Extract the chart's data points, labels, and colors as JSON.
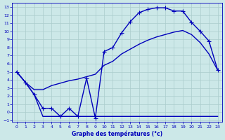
{
  "xlabel": "Graphe des températures (°c)",
  "bg_color": "#cce8e8",
  "grid_color": "#aacccc",
  "line_color": "#0000bb",
  "marker": "+",
  "markersize": 4,
  "linewidth": 1.0,
  "xlim": [
    -0.5,
    23.5
  ],
  "ylim": [
    -1.2,
    13.5
  ],
  "xticks": [
    0,
    1,
    2,
    3,
    4,
    5,
    6,
    7,
    8,
    9,
    10,
    11,
    12,
    13,
    14,
    15,
    16,
    17,
    18,
    19,
    20,
    21,
    22,
    23
  ],
  "yticks": [
    -1,
    0,
    1,
    2,
    3,
    4,
    5,
    6,
    7,
    8,
    9,
    10,
    11,
    12,
    13
  ],
  "curve1_x": [
    0,
    1,
    2,
    3,
    4,
    5,
    6,
    7,
    8,
    9,
    10,
    11,
    12,
    13,
    14,
    15,
    16,
    17,
    18,
    19,
    20,
    21,
    22,
    23
  ],
  "curve1_y": [
    5,
    3.7,
    2.2,
    0.5,
    0.5,
    -0.5,
    0.5,
    -0.5,
    4.2,
    -0.7,
    7.5,
    8.0,
    9.8,
    11.2,
    12.3,
    12.7,
    12.9,
    12.9,
    12.5,
    12.5,
    11.1,
    10.0,
    8.8,
    5.2
  ],
  "curve2_x": [
    0,
    1,
    2,
    3,
    4,
    5,
    6,
    7,
    8,
    9,
    10,
    11,
    12,
    13,
    14,
    15,
    16,
    17,
    18,
    19,
    20,
    21,
    22,
    23
  ],
  "curve2_y": [
    5,
    3.7,
    2.8,
    2.8,
    3.3,
    3.6,
    3.9,
    4.1,
    4.4,
    4.7,
    5.8,
    6.3,
    7.2,
    7.8,
    8.4,
    8.9,
    9.3,
    9.6,
    9.9,
    10.1,
    9.6,
    8.6,
    7.2,
    5.2
  ],
  "curve3_x": [
    0,
    1,
    2,
    3,
    4,
    5,
    6,
    7,
    8,
    9,
    10,
    11,
    12,
    13,
    14,
    15,
    16,
    17,
    18,
    19,
    20,
    21,
    22,
    23
  ],
  "curve3_y": [
    5,
    3.7,
    2.2,
    -0.5,
    -0.5,
    -0.5,
    -0.5,
    -0.5,
    -0.5,
    -0.5,
    -0.5,
    -0.5,
    -0.5,
    -0.5,
    -0.5,
    -0.5,
    -0.5,
    -0.5,
    -0.5,
    -0.5,
    -0.5,
    -0.5,
    -0.5,
    -0.5
  ]
}
